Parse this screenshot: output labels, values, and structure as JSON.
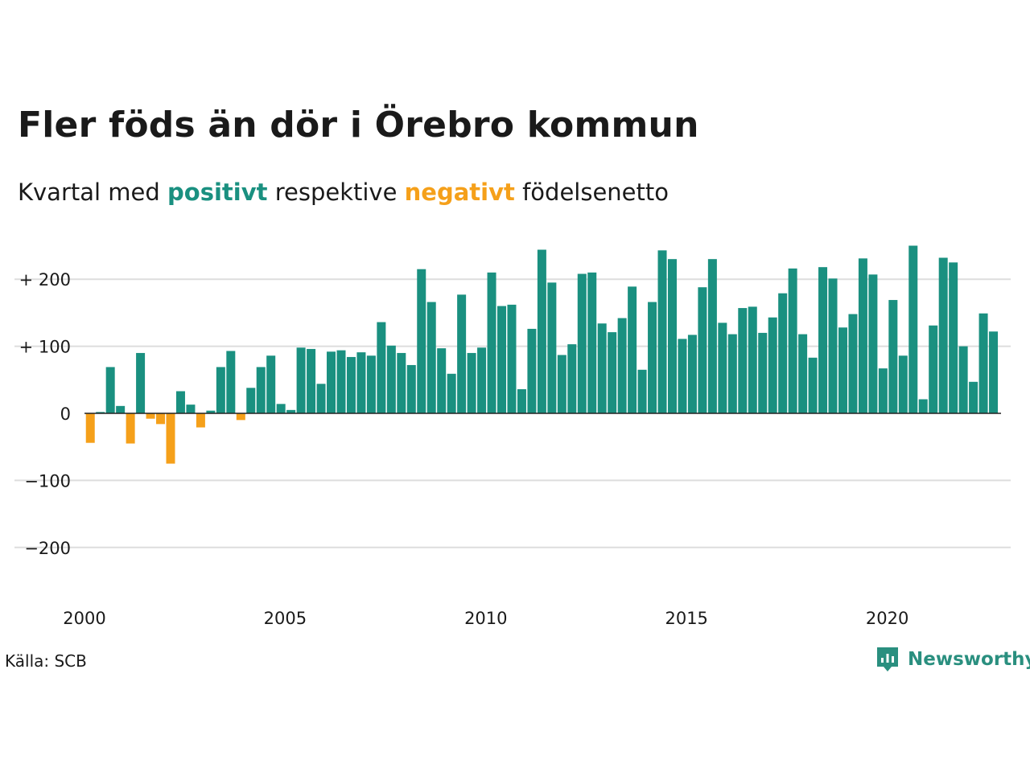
{
  "title": "Fler föds än dör i Örebro kommun",
  "subtitle": {
    "prefix": "Kvartal med ",
    "positive_word": "positivt",
    "middle": " respektive ",
    "negative_word": "negativt",
    "suffix": " födelsenetto"
  },
  "source": "Källa: SCB",
  "brand": {
    "name": "Newsworthy",
    "icon": "newsworthy-logo-icon"
  },
  "colors": {
    "positive": "#1a9080",
    "negative": "#f5a01a",
    "gridline": "#dddddd",
    "zero_line": "#222222",
    "brand": "#2a8f7f"
  },
  "chart_data": {
    "type": "bar",
    "title": "Fler föds än dör i Örebro kommun",
    "x_start": 2000,
    "periods_per_year": 4,
    "xticks": [
      2000,
      2005,
      2010,
      2015,
      2020
    ],
    "xtick_labels": [
      "2000",
      "2005",
      "2010",
      "2015",
      "2020"
    ],
    "yticks": [
      200,
      100,
      0,
      -100,
      -200
    ],
    "ytick_labels": [
      "+ 200",
      "+ 100",
      "0",
      "−100",
      "−200"
    ],
    "ylim": [
      -270,
      250
    ],
    "grid": true,
    "values": [
      -44,
      2,
      69,
      11,
      -45,
      90,
      -8,
      -16,
      -75,
      33,
      13,
      -21,
      4,
      69,
      93,
      -10,
      38,
      69,
      86,
      14,
      5,
      98,
      96,
      44,
      92,
      94,
      84,
      91,
      86,
      136,
      101,
      90,
      72,
      215,
      166,
      97,
      59,
      177,
      90,
      98,
      210,
      160,
      162,
      36,
      126,
      244,
      195,
      87,
      103,
      208,
      210,
      134,
      121,
      142,
      189,
      65,
      166,
      243,
      230,
      111,
      117,
      188,
      230,
      135,
      118,
      157,
      159,
      120,
      143,
      179,
      216,
      118,
      83,
      218,
      201,
      128,
      148,
      231,
      207,
      67,
      169,
      86,
      250,
      21,
      131,
      232,
      225,
      100,
      47,
      149,
      122
    ]
  }
}
